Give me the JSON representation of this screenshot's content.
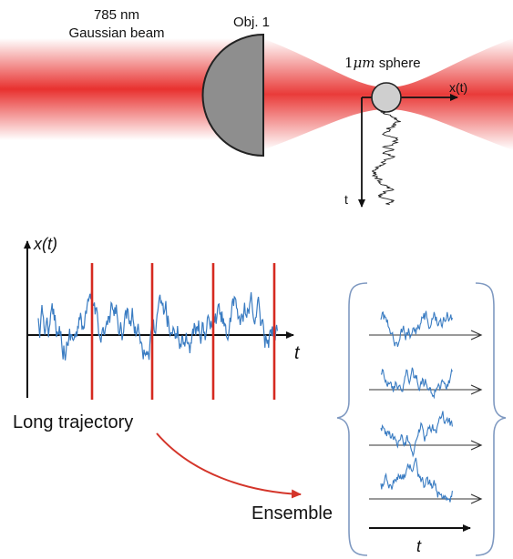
{
  "labels": {
    "wavelength": "785 nm",
    "beam": "Gaussian beam",
    "objective": "Obj. 1",
    "sphere_size": "1",
    "sphere_unit": "μm",
    "sphere_word": " sphere",
    "axis_x": "x(t)",
    "axis_t": "t",
    "plot_y": "x(t)",
    "plot_x": "t",
    "long_trajectory": "Long trajectory",
    "ensemble": "Ensemble",
    "ensemble_t": "t"
  },
  "colors": {
    "beam": "#e8312f",
    "trace": "#3a7cc2",
    "cut_line": "#d62a20",
    "lens": "#8e8e8e",
    "sphere": "#cfcfcf",
    "brace": "#7f99c1",
    "arrow": "#d4352a"
  }
}
